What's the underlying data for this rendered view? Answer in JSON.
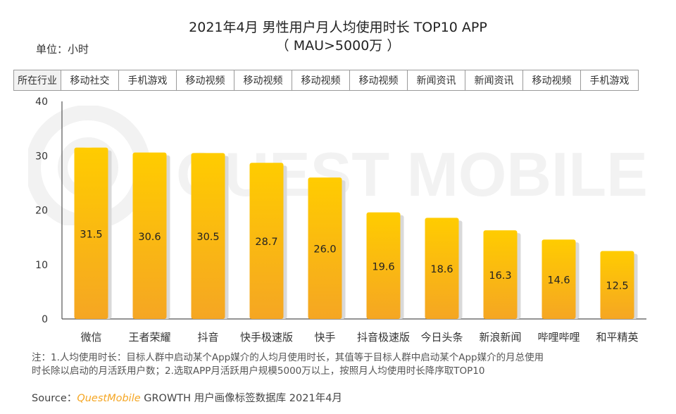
{
  "header": {
    "title_line1": "2021年4月 男性用户月人均使用时长 TOP10 APP",
    "title_line2": "（ MAU>5000万 ）",
    "unit_label": "单位：小时"
  },
  "watermark": "QUEST MOBILE",
  "industry_row": {
    "header": "所在行业",
    "items": [
      "移动社交",
      "手机游戏",
      "移动视频",
      "移动视频",
      "移动视频",
      "移动视频",
      "新闻资讯",
      "新闻资讯",
      "移动视频",
      "手机游戏"
    ]
  },
  "chart_data": {
    "type": "bar",
    "title": "2021年4月 男性用户月人均使用时长 TOP10 APP（MAU>5000万）",
    "ylabel": "单位：小时",
    "xlabel": "",
    "categories": [
      "微信",
      "王者荣耀",
      "抖音",
      "快手极速版",
      "快手",
      "抖音极速版",
      "今日头条",
      "新浪新闻",
      "哔哩哔哩",
      "和平精英"
    ],
    "values": [
      31.5,
      30.6,
      30.5,
      28.7,
      26.0,
      19.6,
      18.6,
      16.3,
      14.6,
      12.5
    ],
    "value_labels": [
      "31.5",
      "30.6",
      "30.5",
      "28.7",
      "26.0",
      "19.6",
      "18.6",
      "16.3",
      "14.6",
      "12.5"
    ],
    "ylim": [
      0,
      40
    ],
    "yticks": [
      "0",
      "10",
      "20",
      "30",
      "40"
    ],
    "grid": false,
    "colors": {
      "bar_top": "#ffcc00",
      "bar_bottom": "#f5a623",
      "shadow": "#d9d9d9"
    }
  },
  "footer": {
    "note_line1": "注：1.人均使用时长：目标人群中启动某个App媒介的人均月使用时长，其值等于目标人群中启动某个App媒介的月总使用",
    "note_line2": "时长除以启动的月活跃用户数；2.选取APP月活跃用户规模5000万以上，按照月人均使用时长降序取TOP10",
    "source_prefix": "Source：",
    "source_brand": "QuestMobile",
    "source_suffix": " GROWTH 用户画像标签数据库 2021年4月"
  }
}
